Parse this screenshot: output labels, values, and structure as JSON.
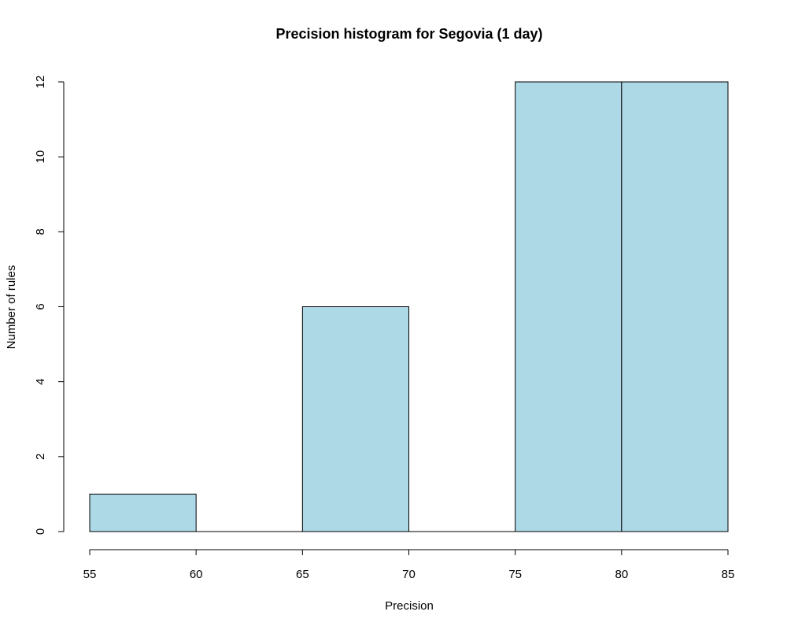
{
  "chart_data": {
    "type": "bar",
    "title": "Precision histogram for Segovia (1 day)",
    "xlabel": "Precision",
    "ylabel": "Number of rules",
    "bins": [
      {
        "from": 55,
        "to": 60,
        "count": 1
      },
      {
        "from": 60,
        "to": 65,
        "count": 0
      },
      {
        "from": 65,
        "to": 70,
        "count": 6
      },
      {
        "from": 70,
        "to": 75,
        "count": 0
      },
      {
        "from": 75,
        "to": 80,
        "count": 12
      },
      {
        "from": 80,
        "to": 85,
        "count": 12
      }
    ],
    "xlim": [
      55,
      85
    ],
    "ylim": [
      0,
      12
    ],
    "xticks": [
      55,
      60,
      65,
      70,
      75,
      80,
      85
    ],
    "yticks": [
      0,
      2,
      4,
      6,
      8,
      10,
      12
    ],
    "grid": false,
    "legend": "none",
    "colors": {
      "bar_fill": "#add8e6",
      "bar_stroke": "#000000"
    }
  }
}
